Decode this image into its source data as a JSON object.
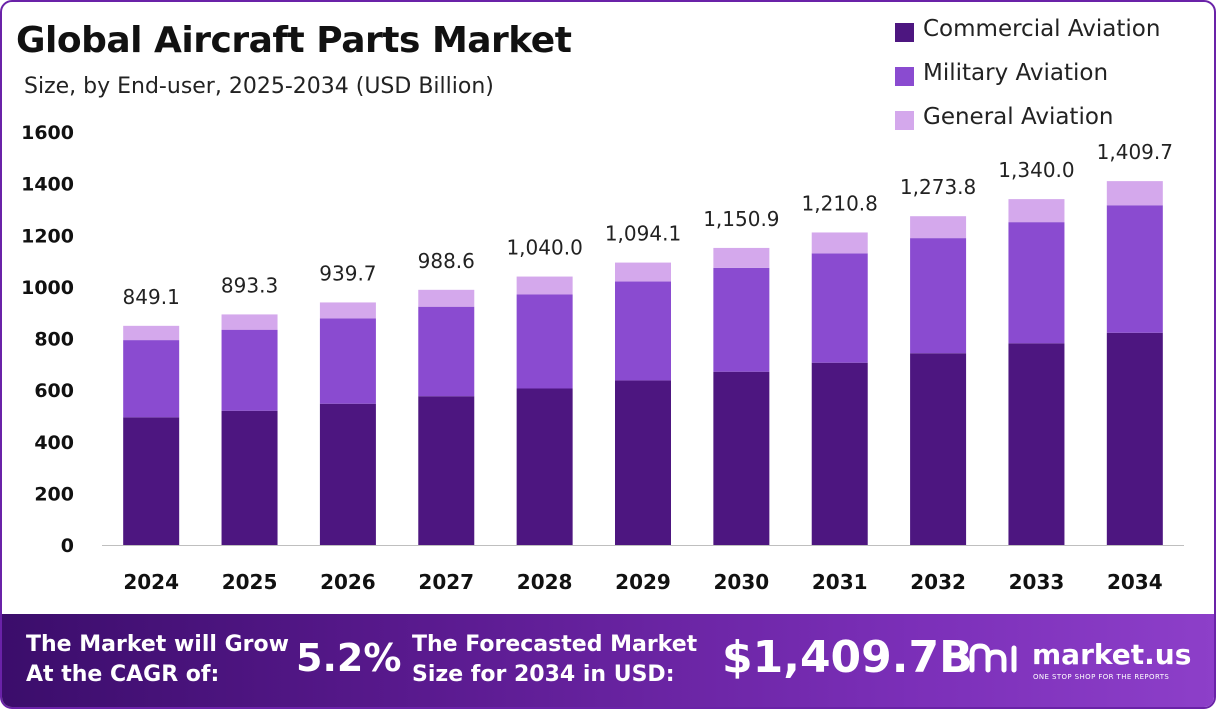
{
  "chart_data": {
    "type": "bar",
    "stacked": true,
    "title": "Global Aircraft Parts Market",
    "subtitle": "Size, by End-user, 2025-2034 (USD Billion)",
    "categories": [
      "2024",
      "2025",
      "2026",
      "2027",
      "2028",
      "2029",
      "2030",
      "2031",
      "2032",
      "2033",
      "2034"
    ],
    "series": [
      {
        "name": "Commercial Aviation",
        "color": "#4d1680",
        "values": [
          494.7,
          520.1,
          547.3,
          576.4,
          606.3,
          637.7,
          671.3,
          706.2,
          742.9,
          781.5,
          822.2
        ]
      },
      {
        "name": "Military Aviation",
        "color": "#8a4bd0",
        "values": [
          299.1,
          314.0,
          330.3,
          346.8,
          364.2,
          383.0,
          402.5,
          423.7,
          446.0,
          469.3,
          494.0
        ]
      },
      {
        "name": "General Aviation",
        "color": "#d4a8ec",
        "values": [
          55.3,
          59.2,
          62.1,
          65.4,
          69.5,
          73.4,
          77.1,
          80.9,
          84.9,
          89.2,
          93.5
        ]
      }
    ],
    "totals": [
      "849.1",
      "893.3",
      "939.7",
      "988.6",
      "1,040.0",
      "1,094.1",
      "1,150.9",
      "1,210.8",
      "1,273.8",
      "1,340.0",
      "1,409.7"
    ],
    "ylim": [
      0,
      1600
    ],
    "yticks": [
      0,
      200,
      400,
      600,
      800,
      1000,
      1200,
      1400,
      1600
    ],
    "grid": false,
    "legend_position": "top-right"
  },
  "banner": {
    "cagr_label_line1": "The Market will Grow",
    "cagr_label_line2": "At the CAGR of:",
    "cagr_value": "5.2%",
    "forecast_label_line1": "The Forecasted Market",
    "forecast_label_line2": "Size for 2034 in USD:",
    "forecast_value": "$1,409.7B",
    "brand_name": "market.us",
    "brand_tagline": "ONE STOP SHOP FOR THE REPORTS"
  },
  "colors": {
    "frame_border": "#6a22a8",
    "banner_start": "#3b0d6b",
    "banner_end": "#8d3fc9"
  },
  "icons": {
    "brand_logo": "market-us-logo-icon"
  }
}
